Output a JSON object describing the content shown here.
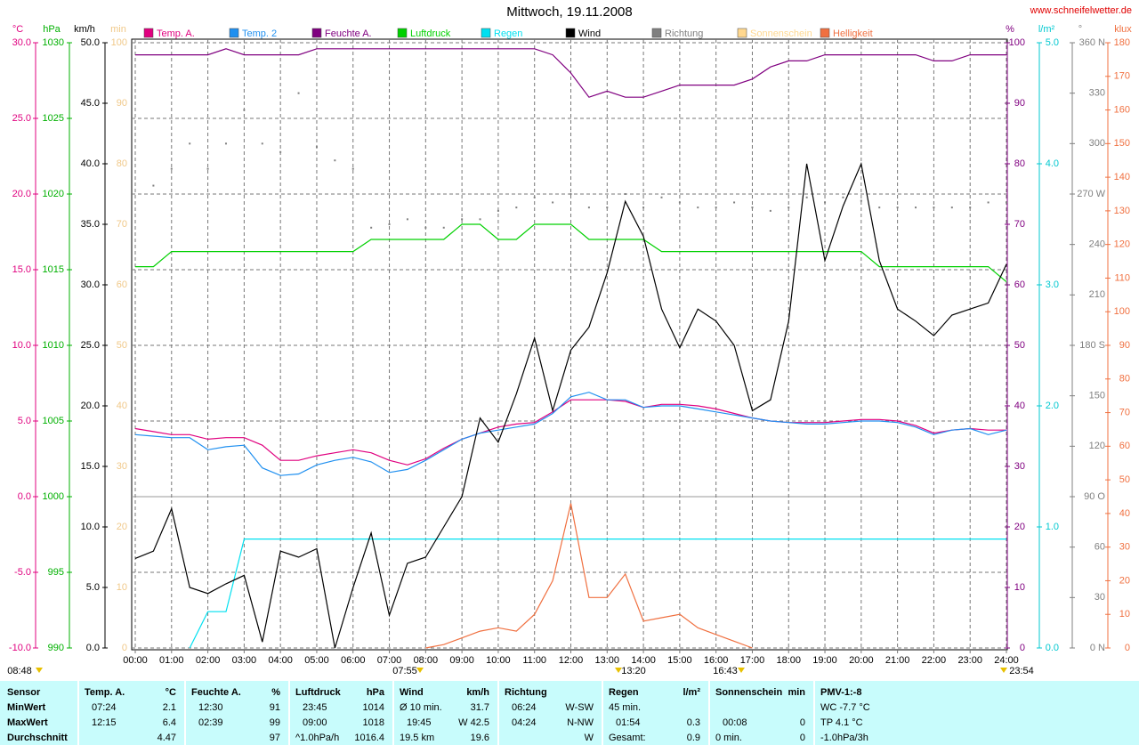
{
  "chart_data": {
    "type": "line",
    "title": "Mittwoch, 19.11.2008",
    "source": "www.schneifelwetter.de",
    "xlim": [
      0,
      24
    ],
    "xticks": [
      {
        "value": 0,
        "label": "00:00"
      },
      {
        "value": 1,
        "label": "01:00"
      },
      {
        "value": 2,
        "label": "02:00"
      },
      {
        "value": 3,
        "label": "03:00"
      },
      {
        "value": 4,
        "label": "04:00"
      },
      {
        "value": 5,
        "label": "05:00"
      },
      {
        "value": 6,
        "label": "06:00"
      },
      {
        "value": 7,
        "label": "07:00"
      },
      {
        "value": 8,
        "label": "08:00"
      },
      {
        "value": 9,
        "label": "09:00"
      },
      {
        "value": 10,
        "label": "10:00"
      },
      {
        "value": 11,
        "label": "11:00"
      },
      {
        "value": 12,
        "label": "12:00"
      },
      {
        "value": 13,
        "label": "13:00"
      },
      {
        "value": 14,
        "label": "14:00"
      },
      {
        "value": 15,
        "label": "15:00"
      },
      {
        "value": 16,
        "label": "16:00"
      },
      {
        "value": 17,
        "label": "17:00"
      },
      {
        "value": 18,
        "label": "18:00"
      },
      {
        "value": 19,
        "label": "19:00"
      },
      {
        "value": 20,
        "label": "20:00"
      },
      {
        "value": 21,
        "label": "21:00"
      },
      {
        "value": 22,
        "label": "22:00"
      },
      {
        "value": 23,
        "label": "23:00"
      },
      {
        "value": 24,
        "label": "24:00"
      }
    ],
    "x": [
      0,
      0.5,
      1,
      1.5,
      2,
      2.5,
      3,
      3.5,
      4,
      4.5,
      5,
      5.5,
      6,
      6.5,
      7,
      7.5,
      8,
      8.5,
      9,
      9.5,
      10,
      10.5,
      11,
      11.5,
      12,
      12.5,
      13,
      13.5,
      14,
      14.5,
      15,
      15.5,
      16,
      16.5,
      17,
      17.5,
      18,
      18.5,
      19,
      19.5,
      20,
      20.5,
      21,
      21.5,
      22,
      22.5,
      23,
      23.5,
      24
    ],
    "axes": [
      {
        "id": "temp",
        "unit": "°C",
        "color": "#e0007f",
        "lim": [
          -10,
          30
        ],
        "grid": true,
        "ticks": [
          {
            "value": -10,
            "label": "-10.0"
          },
          {
            "value": -5,
            "label": "-5.0"
          },
          {
            "value": 0,
            "label": "0.0"
          },
          {
            "value": 5,
            "label": "5.0"
          },
          {
            "value": 10,
            "label": "10.0"
          },
          {
            "value": 15,
            "label": "15.0"
          },
          {
            "value": 20,
            "label": "20.0"
          },
          {
            "value": 25,
            "label": "25.0"
          },
          {
            "value": 30,
            "label": "30.0"
          }
        ]
      },
      {
        "id": "hpa",
        "unit": "hPa",
        "color": "#00b000",
        "lim": [
          990,
          1030
        ],
        "ticks": [
          990,
          995,
          1000,
          1005,
          1010,
          1015,
          1020,
          1025,
          1030
        ]
      },
      {
        "id": "wind",
        "unit": "km/h",
        "color": "#000000",
        "lim": [
          0,
          50
        ],
        "ticks": [
          {
            "value": 0,
            "label": "0.0"
          },
          {
            "value": 5,
            "label": "5.0"
          },
          {
            "value": 10,
            "label": "10.0"
          },
          {
            "value": 15,
            "label": "15.0"
          },
          {
            "value": 20,
            "label": "20.0"
          },
          {
            "value": 25,
            "label": "25.0"
          },
          {
            "value": 30,
            "label": "30.0"
          },
          {
            "value": 35,
            "label": "35.0"
          },
          {
            "value": 40,
            "label": "40.0"
          },
          {
            "value": 45,
            "label": "45.0"
          },
          {
            "value": 50,
            "label": "50.0"
          }
        ]
      },
      {
        "id": "min",
        "unit": "min",
        "color": "#f0c888",
        "lim": [
          0,
          100
        ],
        "ticks": [
          0,
          10,
          20,
          30,
          40,
          50,
          60,
          70,
          80,
          90,
          100
        ]
      },
      {
        "id": "hum",
        "unit": "%",
        "color": "#800080",
        "lim": [
          0,
          100
        ],
        "ticks": [
          0,
          10,
          20,
          30,
          40,
          50,
          60,
          70,
          80,
          90,
          100
        ]
      },
      {
        "id": "rain",
        "unit": "l/m²",
        "color": "#00c8d0",
        "lim": [
          0,
          5
        ],
        "ticks": [
          {
            "value": 0,
            "label": "0.0"
          },
          {
            "value": 1,
            "label": "1.0"
          },
          {
            "value": 2,
            "label": "2.0"
          },
          {
            "value": 3,
            "label": "3.0"
          },
          {
            "value": 4,
            "label": "4.0"
          },
          {
            "value": 5,
            "label": "5.0"
          }
        ]
      },
      {
        "id": "dir",
        "unit": "°",
        "color": "#808080",
        "lim": [
          0,
          360
        ],
        "ticks": [
          {
            "value": 0,
            "label": "0 N"
          },
          30,
          60,
          {
            "value": 90,
            "label": "90 O"
          },
          120,
          150,
          {
            "value": 180,
            "label": "180 S"
          },
          210,
          240,
          {
            "value": 270,
            "label": "270 W"
          },
          300,
          330,
          {
            "value": 360,
            "label": "360 N"
          }
        ]
      },
      {
        "id": "klux",
        "unit": "klux",
        "color": "#f07040",
        "lim": [
          0,
          180
        ],
        "ticks": [
          0,
          10,
          20,
          30,
          40,
          50,
          60,
          70,
          80,
          90,
          100,
          110,
          120,
          130,
          140,
          150,
          160,
          170,
          180
        ]
      }
    ],
    "series": [
      {
        "name": "Temp. A.",
        "color": "#e0007f",
        "axis": "temp",
        "values": [
          4.5,
          4.3,
          4.1,
          4.1,
          3.8,
          3.9,
          3.9,
          3.4,
          2.4,
          2.4,
          2.7,
          2.9,
          3.1,
          2.9,
          2.4,
          2.1,
          2.5,
          3.2,
          3.8,
          4.2,
          4.6,
          4.8,
          4.9,
          5.6,
          6.4,
          6.4,
          6.4,
          6.3,
          5.9,
          6.1,
          6.1,
          6.0,
          5.8,
          5.5,
          5.2,
          5.0,
          4.9,
          4.9,
          4.9,
          5.0,
          5.1,
          5.1,
          5.0,
          4.7,
          4.2,
          4.4,
          4.5,
          4.4,
          4.4
        ]
      },
      {
        "name": "Temp. 2",
        "color": "#2090f0",
        "axis": "temp",
        "values": [
          4.1,
          4.0,
          3.9,
          3.9,
          3.1,
          3.3,
          3.4,
          1.9,
          1.4,
          1.5,
          2.1,
          2.4,
          2.6,
          2.3,
          1.6,
          1.8,
          2.4,
          3.1,
          3.8,
          4.2,
          4.4,
          4.6,
          4.8,
          5.5,
          6.6,
          6.9,
          6.4,
          6.4,
          5.9,
          6.0,
          6.0,
          5.8,
          5.6,
          5.4,
          5.2,
          5.0,
          4.9,
          4.8,
          4.8,
          4.9,
          5.0,
          5.0,
          4.9,
          4.6,
          4.1,
          4.4,
          4.5,
          4.1,
          4.4
        ]
      },
      {
        "name": "Feuchte A.",
        "color": "#800080",
        "axis": "hum",
        "values": [
          98,
          98,
          98,
          98,
          98,
          99,
          98,
          98,
          98,
          98,
          99,
          99,
          99,
          99,
          99,
          99,
          99,
          99,
          99,
          99,
          99,
          99,
          99,
          98,
          95,
          91,
          92,
          91,
          91,
          92,
          93,
          93,
          93,
          93,
          94,
          96,
          97,
          97,
          98,
          98,
          98,
          98,
          98,
          98,
          97,
          97,
          98,
          98,
          98
        ]
      },
      {
        "name": "Luftdruck",
        "color": "#00d000",
        "axis": "hpa",
        "values": [
          1015.2,
          1015.2,
          1016.2,
          1016.2,
          1016.2,
          1016.2,
          1016.2,
          1016.2,
          1016.2,
          1016.2,
          1016.2,
          1016.2,
          1016.2,
          1017,
          1017,
          1017,
          1017,
          1017,
          1018,
          1018,
          1017,
          1017,
          1018,
          1018,
          1018,
          1017,
          1017,
          1017,
          1017,
          1016.2,
          1016.2,
          1016.2,
          1016.2,
          1016.2,
          1016.2,
          1016.2,
          1016.2,
          1016.2,
          1016.2,
          1016.2,
          1016.2,
          1015.2,
          1015.2,
          1015.2,
          1015.2,
          1015.2,
          1015.2,
          1015.2,
          1014.2
        ]
      },
      {
        "name": "Regen",
        "color": "#00e0f0",
        "axis": "rain",
        "values": [
          null,
          null,
          null,
          0,
          0.3,
          0.3,
          0.9,
          0.9,
          0.9,
          0.9,
          0.9,
          0.9,
          0.9,
          0.9,
          0.9,
          0.9,
          0.9,
          0.9,
          0.9,
          0.9,
          0.9,
          0.9,
          0.9,
          0.9,
          0.9,
          0.9,
          0.9,
          0.9,
          0.9,
          0.9,
          0.9,
          0.9,
          0.9,
          0.9,
          0.9,
          0.9,
          0.9,
          0.9,
          0.9,
          0.9,
          0.9,
          0.9,
          0.9,
          0.9,
          0.9,
          0.9,
          0.9,
          0.9,
          0.9
        ]
      },
      {
        "name": "Wind",
        "color": "#000000",
        "axis": "wind",
        "values": [
          7.4,
          8,
          11.5,
          5,
          4.5,
          5.3,
          6,
          0.5,
          8,
          7.5,
          8.2,
          0,
          5,
          9.5,
          2.7,
          7,
          7.5,
          10,
          12.5,
          19,
          17,
          21,
          25.6,
          19.6,
          24.6,
          26.5,
          31,
          36.9,
          34,
          28,
          24.8,
          28,
          27,
          25,
          19.6,
          20.5,
          27,
          40,
          32,
          36.5,
          40,
          32,
          28,
          27,
          25.8,
          27.5,
          28,
          28.5,
          31.7
        ]
      },
      {
        "name": "Richtung",
        "color": "#808080",
        "axis": "dir",
        "style": "dots",
        "values": [
          null,
          275,
          285,
          300,
          285,
          300,
          320,
          300,
          295,
          330,
          298,
          290,
          285,
          250,
          252,
          255,
          250,
          250,
          255,
          255,
          260,
          262,
          268,
          265,
          270,
          262,
          262,
          270,
          262,
          268,
          265,
          262,
          262,
          265,
          262,
          260,
          262,
          268,
          265,
          268,
          266,
          262,
          262,
          262,
          262,
          262,
          262,
          265,
          265
        ]
      },
      {
        "name": "Sonnenschein",
        "color": "#ffd890",
        "axis": "min",
        "values": [
          null,
          null,
          null,
          null,
          null,
          null,
          null,
          null,
          null,
          null,
          null,
          null,
          null,
          null,
          null,
          null,
          null,
          null,
          null,
          null,
          null,
          null,
          null,
          null,
          null,
          null,
          null,
          null,
          null,
          null,
          null,
          null,
          null,
          null,
          null,
          null,
          null,
          null,
          null,
          null,
          null,
          null,
          null,
          null,
          null,
          null,
          null,
          null,
          null
        ]
      },
      {
        "name": "Helligkeit",
        "color": "#f07040",
        "axis": "klux",
        "values": [
          null,
          null,
          null,
          null,
          null,
          null,
          null,
          null,
          null,
          null,
          null,
          null,
          null,
          null,
          null,
          null,
          0,
          1,
          3,
          5,
          6,
          5,
          10,
          20,
          43,
          15,
          15,
          22,
          8,
          9,
          10,
          6,
          4,
          2,
          0,
          null,
          null,
          null,
          null,
          null,
          null,
          null,
          null,
          null,
          null,
          null,
          null,
          null,
          null
        ]
      }
    ],
    "annotations": [
      "07:55",
      "13:20",
      "16:43",
      "23:54",
      "08:48"
    ]
  },
  "stats": {
    "first_column": [
      "Sensor",
      "MinWert",
      "MaxWert",
      "Durchschnitt"
    ],
    "groups": [
      {
        "title": "Temp. A.",
        "unit": "°C",
        "rows": [
          [
            "07:24",
            "2.1"
          ],
          [
            "12:15",
            "6.4"
          ],
          [
            null,
            "4.47"
          ]
        ]
      },
      {
        "title": "Feuchte A.",
        "unit": "%",
        "rows": [
          [
            "12:30",
            "91"
          ],
          [
            "02:39",
            "99"
          ],
          [
            null,
            "97"
          ]
        ]
      },
      {
        "title": "Luftdruck",
        "unit": "hPa",
        "rows": [
          [
            "23:45",
            "1014"
          ],
          [
            "09:00",
            "1018"
          ],
          [
            "^1.0hPa/h",
            "1016.4"
          ]
        ]
      },
      {
        "title": "Wind",
        "unit": "km/h",
        "rows": [
          [
            "Ø 10 min.",
            "31.7"
          ],
          [
            "19:45",
            "W 42.5"
          ],
          [
            "19.5 km",
            "19.6"
          ]
        ]
      },
      {
        "title": "Richtung",
        "rows": [
          [
            "06:24",
            "W-SW"
          ],
          [
            "04:24",
            "N-NW"
          ],
          [
            null,
            "W"
          ]
        ]
      },
      {
        "title": "Regen",
        "unit": "l/m²",
        "rows": [
          [
            "45 min.",
            null
          ],
          [
            "01:54",
            "0.3"
          ],
          [
            "Gesamt:",
            "0.9"
          ]
        ]
      },
      {
        "title": "Sonnenschein",
        "unit": "min",
        "rows": [
          [
            null,
            null
          ],
          [
            "00:08",
            "0"
          ],
          [
            "0 min.",
            "0"
          ]
        ]
      },
      {
        "title": "PMV-1:-8",
        "rows": [
          [
            "WC -7.7 °C"
          ],
          [
            "TP 4.1 °C"
          ],
          [
            "-1.0hPa/3h"
          ]
        ]
      }
    ]
  }
}
